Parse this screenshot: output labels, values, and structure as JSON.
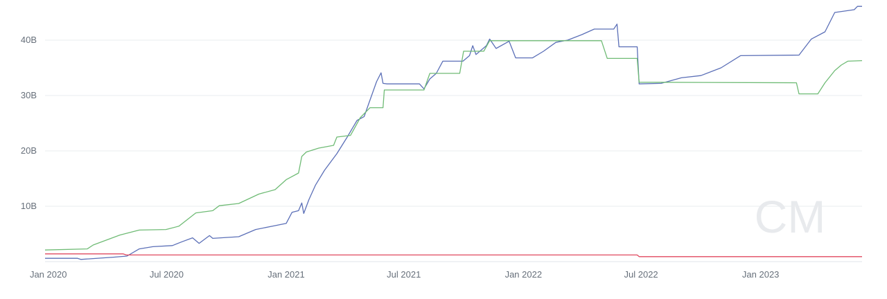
{
  "chart_data": {
    "type": "line",
    "title": "",
    "xlabel": "",
    "ylabel": "",
    "x_range": [
      "2019-12-27",
      "2023-06-06"
    ],
    "ylim": [
      0,
      46
    ],
    "y_ticks": [
      {
        "value": 10,
        "label": "10B"
      },
      {
        "value": 20,
        "label": "20B"
      },
      {
        "value": 30,
        "label": "30B"
      },
      {
        "value": 40,
        "label": "40B"
      }
    ],
    "x_ticks": [
      {
        "date": "2020-01-01",
        "label": "Jan 2020"
      },
      {
        "date": "2020-07-01",
        "label": "Jul 2020"
      },
      {
        "date": "2021-01-01",
        "label": "Jan 2021"
      },
      {
        "date": "2021-07-01",
        "label": "Jul 2021"
      },
      {
        "date": "2022-01-01",
        "label": "Jan 2022"
      },
      {
        "date": "2022-07-01",
        "label": "Jul 2022"
      },
      {
        "date": "2023-01-01",
        "label": "Jan 2023"
      }
    ],
    "grid": true,
    "legend": "none",
    "watermark": "CM",
    "series": [
      {
        "color": "#5b6fb7",
        "points": [
          [
            "2019-12-27",
            0.6
          ],
          [
            "2020-02-15",
            0.6
          ],
          [
            "2020-02-20",
            0.4
          ],
          [
            "2020-04-10",
            0.8
          ],
          [
            "2020-05-01",
            1.0
          ],
          [
            "2020-05-20",
            2.3
          ],
          [
            "2020-06-10",
            2.7
          ],
          [
            "2020-07-10",
            2.9
          ],
          [
            "2020-07-25",
            3.6
          ],
          [
            "2020-08-10",
            4.3
          ],
          [
            "2020-08-20",
            3.3
          ],
          [
            "2020-09-05",
            4.7
          ],
          [
            "2020-09-10",
            4.2
          ],
          [
            "2020-10-20",
            4.5
          ],
          [
            "2020-11-15",
            5.8
          ],
          [
            "2020-12-15",
            6.5
          ],
          [
            "2021-01-01",
            6.9
          ],
          [
            "2021-01-10",
            8.9
          ],
          [
            "2021-01-20",
            9.2
          ],
          [
            "2021-01-25",
            10.6
          ],
          [
            "2021-01-28",
            8.7
          ],
          [
            "2021-02-05",
            11.2
          ],
          [
            "2021-02-15",
            13.8
          ],
          [
            "2021-03-01",
            16.5
          ],
          [
            "2021-03-20",
            19.5
          ],
          [
            "2021-04-05",
            22.5
          ],
          [
            "2021-04-20",
            25.5
          ],
          [
            "2021-05-01",
            26.2
          ],
          [
            "2021-05-10",
            29.2
          ],
          [
            "2021-05-20",
            32.5
          ],
          [
            "2021-05-27",
            34.1
          ],
          [
            "2021-05-30",
            32.2
          ],
          [
            "2021-06-05",
            32.1
          ],
          [
            "2021-07-15",
            32.1
          ],
          [
            "2021-07-25",
            32.1
          ],
          [
            "2021-08-01",
            31.2
          ],
          [
            "2021-08-10",
            33.0
          ],
          [
            "2021-08-20",
            34.0
          ],
          [
            "2021-08-30",
            36.2
          ],
          [
            "2021-09-30",
            36.2
          ],
          [
            "2021-10-10",
            37.2
          ],
          [
            "2021-10-15",
            39.0
          ],
          [
            "2021-10-20",
            37.4
          ],
          [
            "2021-11-05",
            39.0
          ],
          [
            "2021-11-10",
            40.2
          ],
          [
            "2021-11-20",
            38.5
          ],
          [
            "2021-12-10",
            39.8
          ],
          [
            "2021-12-20",
            36.8
          ],
          [
            "2022-01-15",
            36.8
          ],
          [
            "2022-02-01",
            38.0
          ],
          [
            "2022-02-20",
            39.6
          ],
          [
            "2022-03-10",
            40.0
          ],
          [
            "2022-04-01",
            41.0
          ],
          [
            "2022-04-20",
            42.0
          ],
          [
            "2022-05-20",
            42.0
          ],
          [
            "2022-05-25",
            42.9
          ],
          [
            "2022-05-28",
            38.8
          ],
          [
            "2022-06-25",
            38.8
          ],
          [
            "2022-06-28",
            32.1
          ],
          [
            "2022-08-01",
            32.2
          ],
          [
            "2022-09-01",
            33.2
          ],
          [
            "2022-10-01",
            33.6
          ],
          [
            "2022-11-01",
            35.0
          ],
          [
            "2022-12-01",
            37.2
          ],
          [
            "2023-03-01",
            37.3
          ],
          [
            "2023-03-20",
            40.2
          ],
          [
            "2023-04-10",
            41.5
          ],
          [
            "2023-04-25",
            45.0
          ],
          [
            "2023-05-25",
            45.5
          ],
          [
            "2023-05-30",
            46.1
          ],
          [
            "2023-06-06",
            46.1
          ]
        ]
      },
      {
        "color": "#6fbb75",
        "points": [
          [
            "2019-12-27",
            2.1
          ],
          [
            "2020-03-01",
            2.3
          ],
          [
            "2020-03-10",
            3.0
          ],
          [
            "2020-04-20",
            4.8
          ],
          [
            "2020-05-20",
            5.7
          ],
          [
            "2020-06-30",
            5.8
          ],
          [
            "2020-07-20",
            6.4
          ],
          [
            "2020-08-15",
            8.8
          ],
          [
            "2020-09-10",
            9.2
          ],
          [
            "2020-09-20",
            10.1
          ],
          [
            "2020-10-20",
            10.5
          ],
          [
            "2020-11-20",
            12.2
          ],
          [
            "2020-12-15",
            13.0
          ],
          [
            "2021-01-01",
            14.8
          ],
          [
            "2021-01-20",
            16.0
          ],
          [
            "2021-01-25",
            19.0
          ],
          [
            "2021-02-01",
            19.8
          ],
          [
            "2021-02-20",
            20.5
          ],
          [
            "2021-03-15",
            21.0
          ],
          [
            "2021-03-20",
            22.5
          ],
          [
            "2021-04-10",
            22.8
          ],
          [
            "2021-04-25",
            26.0
          ],
          [
            "2021-05-10",
            27.8
          ],
          [
            "2021-05-30",
            27.8
          ],
          [
            "2021-06-01",
            31.0
          ],
          [
            "2021-08-01",
            31.0
          ],
          [
            "2021-08-10",
            34.0
          ],
          [
            "2021-09-25",
            34.0
          ],
          [
            "2021-10-01",
            38.0
          ],
          [
            "2021-11-01",
            38.0
          ],
          [
            "2021-11-10",
            39.9
          ],
          [
            "2022-05-01",
            39.9
          ],
          [
            "2022-05-10",
            36.7
          ],
          [
            "2022-06-25",
            36.7
          ],
          [
            "2022-06-28",
            32.4
          ],
          [
            "2023-02-25",
            32.3
          ],
          [
            "2023-03-01",
            30.3
          ],
          [
            "2023-03-30",
            30.3
          ],
          [
            "2023-04-10",
            32.3
          ],
          [
            "2023-04-25",
            34.5
          ],
          [
            "2023-05-05",
            35.5
          ],
          [
            "2023-05-15",
            36.2
          ],
          [
            "2023-06-06",
            36.3
          ]
        ]
      },
      {
        "color": "#e0485f",
        "points": [
          [
            "2019-12-27",
            1.4
          ],
          [
            "2020-04-25",
            1.4
          ],
          [
            "2020-04-30",
            1.2
          ],
          [
            "2022-06-25",
            1.2
          ],
          [
            "2022-06-28",
            0.9
          ],
          [
            "2023-06-06",
            0.9
          ]
        ]
      }
    ]
  }
}
